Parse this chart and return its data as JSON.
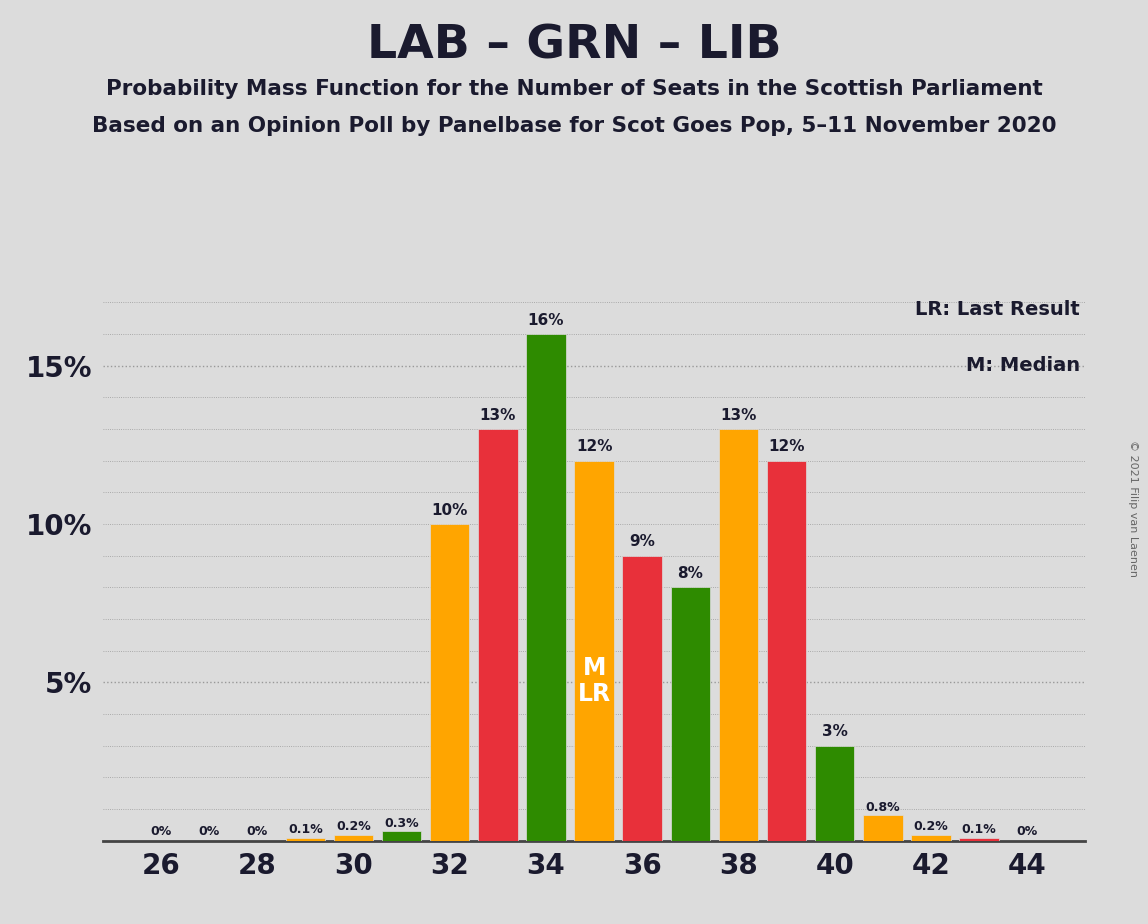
{
  "title": "LAB – GRN – LIB",
  "subtitle1": "Probability Mass Function for the Number of Seats in the Scottish Parliament",
  "subtitle2": "Based on an Opinion Poll by Panelbase for Scot Goes Pop, 5–11 November 2020",
  "copyright": "© 2021 Filip van Laenen",
  "legend_lr": "LR: Last Result",
  "legend_m": "M: Median",
  "background_color": "#dcdcdc",
  "seats": [
    26,
    27,
    28,
    29,
    30,
    31,
    32,
    33,
    34,
    35,
    36,
    37,
    38,
    39,
    40,
    41,
    42,
    43,
    44
  ],
  "probabilities": [
    0.0,
    0.0,
    0.0,
    0.001,
    0.002,
    0.003,
    0.1,
    0.13,
    0.16,
    0.12,
    0.09,
    0.08,
    0.13,
    0.12,
    0.03,
    0.008,
    0.002,
    0.001,
    0.0
  ],
  "bar_colors": [
    "#e8303a",
    "#e8303a",
    "#e8303a",
    "#ffa500",
    "#ffa500",
    "#2e8b00",
    "#ffa500",
    "#e8303a",
    "#2e8b00",
    "#ffa500",
    "#e8303a",
    "#2e8b00",
    "#ffa500",
    "#e8303a",
    "#2e8b00",
    "#ffa500",
    "#ffa500",
    "#e8303a",
    "#2e8b00"
  ],
  "label_texts": [
    "0%",
    "0%",
    "0%",
    "0.1%",
    "0.2%",
    "0.3%",
    "10%",
    "13%",
    "16%",
    "12%",
    "9%",
    "8%",
    "13%",
    "12%",
    "3%",
    "0.8%",
    "0.2%",
    "0.1%",
    "0%"
  ],
  "median_seat": 35,
  "lr_seat": 35,
  "ylim": [
    0,
    0.175
  ],
  "yticks": [
    0.0,
    0.05,
    0.1,
    0.15
  ],
  "yticklabels": [
    "",
    "5%",
    "10%",
    "15%"
  ],
  "xticks": [
    26,
    28,
    30,
    32,
    34,
    36,
    38,
    40,
    42,
    44
  ],
  "dark_text": "#1a1a2e",
  "grid_color": "#999999",
  "axis_bottom_color": "#444444",
  "copyright_color": "#666666"
}
